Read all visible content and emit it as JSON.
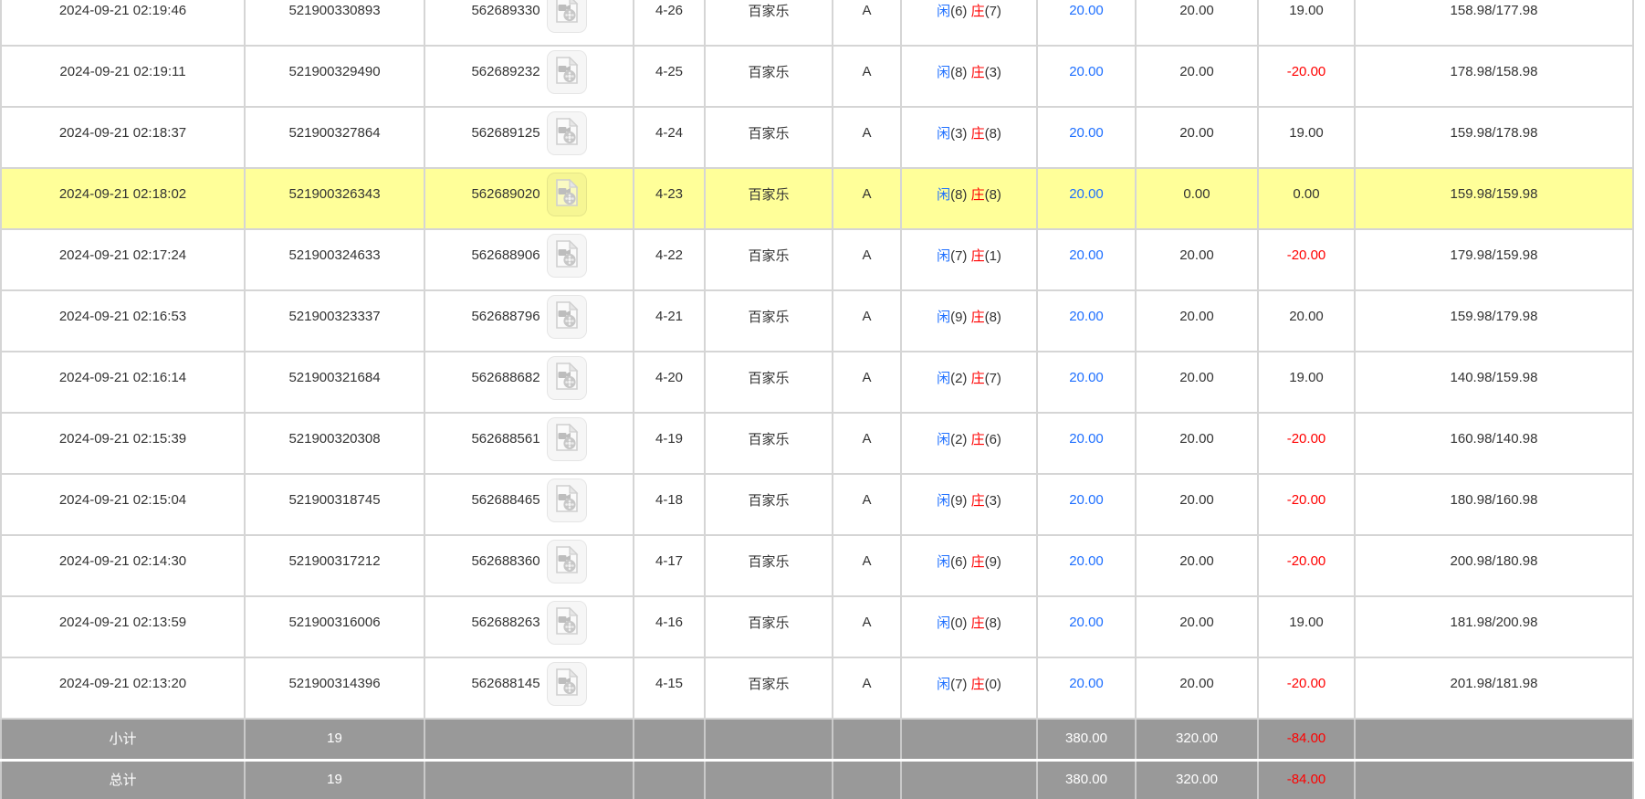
{
  "colors": {
    "highlight_row": "#ffff99",
    "bet_blue": "#1e6fff",
    "loss_red": "#ff0000",
    "player_blue": "#1e6fff",
    "banker_red": "#ff0000",
    "footer_bg": "#999999",
    "footer_text": "#ffffff"
  },
  "table": {
    "result_labels": {
      "player": "闲",
      "banker": "庄"
    },
    "icon_name": "video-replay-icon",
    "rows": [
      {
        "time": "2024-09-21 02:19:46",
        "order_no": "521900330893",
        "game_no": "562689330",
        "round": "4-26",
        "game": "百家乐",
        "table": "A",
        "player_point": "6",
        "banker_point": "7",
        "bet": "20.00",
        "valid": "20.00",
        "winloss": "19.00",
        "balance": "158.98/177.98",
        "highlighted": false
      },
      {
        "time": "2024-09-21 02:19:11",
        "order_no": "521900329490",
        "game_no": "562689232",
        "round": "4-25",
        "game": "百家乐",
        "table": "A",
        "player_point": "8",
        "banker_point": "3",
        "bet": "20.00",
        "valid": "20.00",
        "winloss": "-20.00",
        "balance": "178.98/158.98",
        "highlighted": false
      },
      {
        "time": "2024-09-21 02:18:37",
        "order_no": "521900327864",
        "game_no": "562689125",
        "round": "4-24",
        "game": "百家乐",
        "table": "A",
        "player_point": "3",
        "banker_point": "8",
        "bet": "20.00",
        "valid": "20.00",
        "winloss": "19.00",
        "balance": "159.98/178.98",
        "highlighted": false
      },
      {
        "time": "2024-09-21 02:18:02",
        "order_no": "521900326343",
        "game_no": "562689020",
        "round": "4-23",
        "game": "百家乐",
        "table": "A",
        "player_point": "8",
        "banker_point": "8",
        "bet": "20.00",
        "valid": "0.00",
        "winloss": "0.00",
        "balance": "159.98/159.98",
        "highlighted": true
      },
      {
        "time": "2024-09-21 02:17:24",
        "order_no": "521900324633",
        "game_no": "562688906",
        "round": "4-22",
        "game": "百家乐",
        "table": "A",
        "player_point": "7",
        "banker_point": "1",
        "bet": "20.00",
        "valid": "20.00",
        "winloss": "-20.00",
        "balance": "179.98/159.98",
        "highlighted": false
      },
      {
        "time": "2024-09-21 02:16:53",
        "order_no": "521900323337",
        "game_no": "562688796",
        "round": "4-21",
        "game": "百家乐",
        "table": "A",
        "player_point": "9",
        "banker_point": "8",
        "bet": "20.00",
        "valid": "20.00",
        "winloss": "20.00",
        "balance": "159.98/179.98",
        "highlighted": false
      },
      {
        "time": "2024-09-21 02:16:14",
        "order_no": "521900321684",
        "game_no": "562688682",
        "round": "4-20",
        "game": "百家乐",
        "table": "A",
        "player_point": "2",
        "banker_point": "7",
        "bet": "20.00",
        "valid": "20.00",
        "winloss": "19.00",
        "balance": "140.98/159.98",
        "highlighted": false
      },
      {
        "time": "2024-09-21 02:15:39",
        "order_no": "521900320308",
        "game_no": "562688561",
        "round": "4-19",
        "game": "百家乐",
        "table": "A",
        "player_point": "2",
        "banker_point": "6",
        "bet": "20.00",
        "valid": "20.00",
        "winloss": "-20.00",
        "balance": "160.98/140.98",
        "highlighted": false
      },
      {
        "time": "2024-09-21 02:15:04",
        "order_no": "521900318745",
        "game_no": "562688465",
        "round": "4-18",
        "game": "百家乐",
        "table": "A",
        "player_point": "9",
        "banker_point": "3",
        "bet": "20.00",
        "valid": "20.00",
        "winloss": "-20.00",
        "balance": "180.98/160.98",
        "highlighted": false
      },
      {
        "time": "2024-09-21 02:14:30",
        "order_no": "521900317212",
        "game_no": "562688360",
        "round": "4-17",
        "game": "百家乐",
        "table": "A",
        "player_point": "6",
        "banker_point": "9",
        "bet": "20.00",
        "valid": "20.00",
        "winloss": "-20.00",
        "balance": "200.98/180.98",
        "highlighted": false
      },
      {
        "time": "2024-09-21 02:13:59",
        "order_no": "521900316006",
        "game_no": "562688263",
        "round": "4-16",
        "game": "百家乐",
        "table": "A",
        "player_point": "0",
        "banker_point": "8",
        "bet": "20.00",
        "valid": "20.00",
        "winloss": "19.00",
        "balance": "181.98/200.98",
        "highlighted": false
      },
      {
        "time": "2024-09-21 02:13:20",
        "order_no": "521900314396",
        "game_no": "562688145",
        "round": "4-15",
        "game": "百家乐",
        "table": "A",
        "player_point": "7",
        "banker_point": "0",
        "bet": "20.00",
        "valid": "20.00",
        "winloss": "-20.00",
        "balance": "201.98/181.98",
        "highlighted": false
      }
    ],
    "footer_rows": [
      {
        "label": "小计",
        "count": "19",
        "bet": "380.00",
        "valid": "320.00",
        "winloss": "-84.00"
      },
      {
        "label": "总计",
        "count": "19",
        "bet": "380.00",
        "valid": "320.00",
        "winloss": "-84.00"
      }
    ]
  }
}
